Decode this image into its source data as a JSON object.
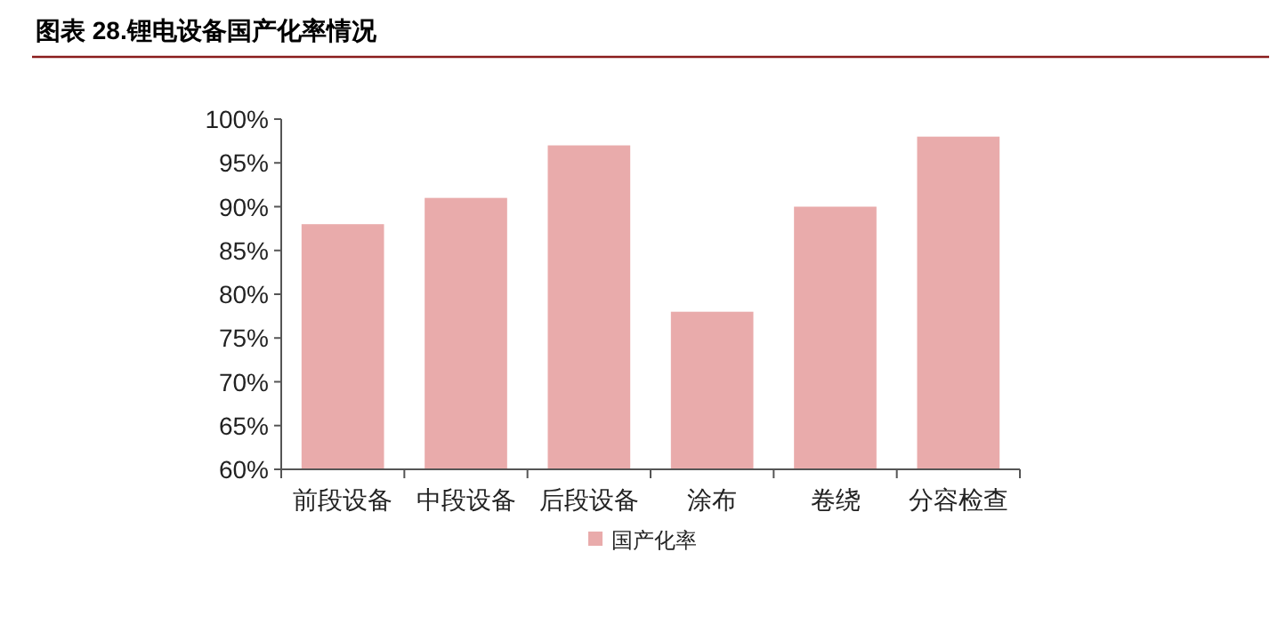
{
  "chart_data": {
    "type": "bar",
    "title": "图表 28.锂电设备国产化率情况",
    "categories": [
      "前段设备",
      "中段设备",
      "后段设备",
      "涂布",
      "卷绕",
      "分容检查"
    ],
    "series": [
      {
        "name": "国产化率",
        "color": "#e9abab",
        "values": [
          88,
          91,
          97,
          78,
          90,
          98
        ]
      }
    ],
    "ylim": [
      60,
      100
    ],
    "yticks": [
      {
        "value": 60,
        "label": "60%"
      },
      {
        "value": 65,
        "label": "65%"
      },
      {
        "value": 70,
        "label": "70%"
      },
      {
        "value": 75,
        "label": "75%"
      },
      {
        "value": 80,
        "label": "80%"
      },
      {
        "value": 85,
        "label": "85%"
      },
      {
        "value": 90,
        "label": "90%"
      },
      {
        "value": 95,
        "label": "95%"
      },
      {
        "value": 100,
        "label": "100%"
      }
    ],
    "legend": "bottom",
    "grid": false
  }
}
